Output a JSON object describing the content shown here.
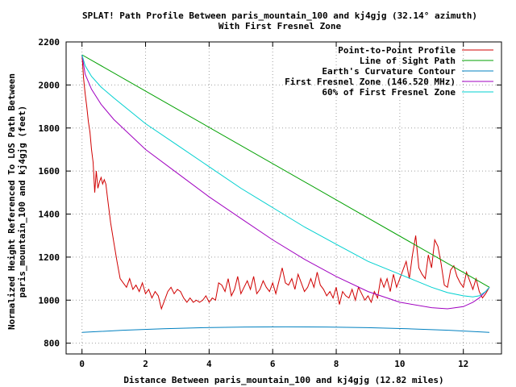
{
  "chart_data": {
    "type": "line",
    "title": "SPLAT! Path Profile Between paris_mountain_100 and kj4gjg (32.14° azimuth)",
    "subtitle": "With First Fresnel Zone",
    "xlabel": "Distance Between paris_mountain_100 and kj4gjg (12.82 miles)",
    "ylabel_lines": [
      "Normalized Height Referenced To LOS Path Between",
      "paris_mountain_100 and kj4gjg (feet)"
    ],
    "xlim": [
      -0.5,
      13.2
    ],
    "ylim": [
      750,
      2200
    ],
    "x_ticks": [
      0,
      2,
      4,
      6,
      8,
      10,
      12
    ],
    "y_ticks": [
      800,
      1000,
      1200,
      1400,
      1600,
      1800,
      2000,
      2200
    ],
    "grid": true,
    "legend_position": "top-right",
    "series": [
      {
        "name": "Point-to-Point Profile",
        "color": "#d00000",
        "x": [
          0,
          0.05,
          0.1,
          0.15,
          0.2,
          0.25,
          0.3,
          0.35,
          0.4,
          0.45,
          0.5,
          0.55,
          0.6,
          0.65,
          0.7,
          0.75,
          0.8,
          0.9,
          1.0,
          1.1,
          1.2,
          1.3,
          1.4,
          1.5,
          1.6,
          1.7,
          1.8,
          1.9,
          2.0,
          2.1,
          2.2,
          2.3,
          2.4,
          2.5,
          2.6,
          2.7,
          2.8,
          2.9,
          3.0,
          3.1,
          3.2,
          3.3,
          3.4,
          3.5,
          3.6,
          3.7,
          3.8,
          3.9,
          4.0,
          4.1,
          4.2,
          4.3,
          4.4,
          4.5,
          4.6,
          4.7,
          4.8,
          4.9,
          5.0,
          5.1,
          5.2,
          5.3,
          5.4,
          5.5,
          5.6,
          5.7,
          5.8,
          5.9,
          6.0,
          6.1,
          6.2,
          6.3,
          6.4,
          6.5,
          6.6,
          6.7,
          6.8,
          6.9,
          7.0,
          7.1,
          7.2,
          7.3,
          7.4,
          7.5,
          7.6,
          7.7,
          7.8,
          7.9,
          8.0,
          8.1,
          8.2,
          8.3,
          8.4,
          8.5,
          8.6,
          8.7,
          8.8,
          8.9,
          9.0,
          9.1,
          9.2,
          9.3,
          9.4,
          9.5,
          9.6,
          9.7,
          9.8,
          9.9,
          10.0,
          10.1,
          10.2,
          10.3,
          10.4,
          10.5,
          10.6,
          10.7,
          10.8,
          10.9,
          11.0,
          11.1,
          11.2,
          11.3,
          11.4,
          11.5,
          11.6,
          11.7,
          11.8,
          11.9,
          12.0,
          12.1,
          12.2,
          12.3,
          12.4,
          12.5,
          12.6,
          12.7,
          12.82
        ],
        "values": [
          2140,
          2030,
          1960,
          1900,
          1830,
          1780,
          1700,
          1640,
          1500,
          1600,
          1520,
          1550,
          1570,
          1540,
          1560,
          1540,
          1480,
          1360,
          1270,
          1180,
          1100,
          1080,
          1060,
          1100,
          1050,
          1070,
          1040,
          1080,
          1030,
          1050,
          1010,
          1040,
          1020,
          960,
          1000,
          1040,
          1060,
          1030,
          1050,
          1040,
          1010,
          990,
          1010,
          990,
          1000,
          990,
          1000,
          1020,
          990,
          1010,
          1000,
          1080,
          1070,
          1040,
          1100,
          1020,
          1050,
          1110,
          1030,
          1060,
          1090,
          1050,
          1110,
          1030,
          1050,
          1090,
          1060,
          1040,
          1080,
          1030,
          1090,
          1150,
          1080,
          1070,
          1100,
          1050,
          1120,
          1080,
          1040,
          1060,
          1100,
          1060,
          1130,
          1070,
          1050,
          1020,
          1040,
          1010,
          1060,
          980,
          1040,
          1020,
          1010,
          1050,
          1000,
          1060,
          1030,
          1000,
          1020,
          990,
          1040,
          1010,
          1100,
          1060,
          1100,
          1040,
          1120,
          1060,
          1100,
          1140,
          1180,
          1100,
          1210,
          1300,
          1150,
          1120,
          1100,
          1210,
          1150,
          1280,
          1250,
          1170,
          1070,
          1060,
          1140,
          1160,
          1110,
          1080,
          1060,
          1130,
          1090,
          1050,
          1100,
          1040,
          1010,
          1030,
          1060
        ]
      },
      {
        "name": "Line of Sight Path",
        "color": "#00a000",
        "x": [
          0,
          12.82
        ],
        "values": [
          2140,
          1060
        ]
      },
      {
        "name": "Earth's Curvature Contour",
        "color": "#0080c0",
        "x": [
          0,
          1.28,
          2.56,
          3.85,
          5.13,
          6.41,
          7.69,
          8.97,
          10.26,
          11.54,
          12.82
        ],
        "values": [
          850,
          860,
          867,
          872,
          875,
          876,
          875,
          872,
          867,
          860,
          850
        ]
      },
      {
        "name": "First Fresnel Zone (146.520 MHz)",
        "color": "#a000c0",
        "x": [
          0,
          0.1,
          0.3,
          0.6,
          1.0,
          1.5,
          2.0,
          3.0,
          4.0,
          5.0,
          6.0,
          7.0,
          8.0,
          9.0,
          10.0,
          11.0,
          11.5,
          12.0,
          12.3,
          12.5,
          12.7,
          12.82
        ],
        "values": [
          2140,
          2050,
          1980,
          1910,
          1840,
          1770,
          1700,
          1590,
          1480,
          1380,
          1280,
          1190,
          1110,
          1040,
          990,
          965,
          960,
          970,
          990,
          1010,
          1040,
          1060
        ]
      },
      {
        "name": "60% of First Fresnel Zone",
        "color": "#00d0d0",
        "x": [
          0,
          0.1,
          0.3,
          0.6,
          1.0,
          1.5,
          2.0,
          3.0,
          4.0,
          5.0,
          6.0,
          7.0,
          8.0,
          9.0,
          10.0,
          11.0,
          11.5,
          12.0,
          12.3,
          12.5,
          12.7,
          12.82
        ],
        "values": [
          2140,
          2090,
          2040,
          1990,
          1940,
          1880,
          1820,
          1720,
          1620,
          1520,
          1430,
          1340,
          1260,
          1180,
          1120,
          1060,
          1035,
          1020,
          1015,
          1020,
          1040,
          1060
        ]
      }
    ]
  }
}
